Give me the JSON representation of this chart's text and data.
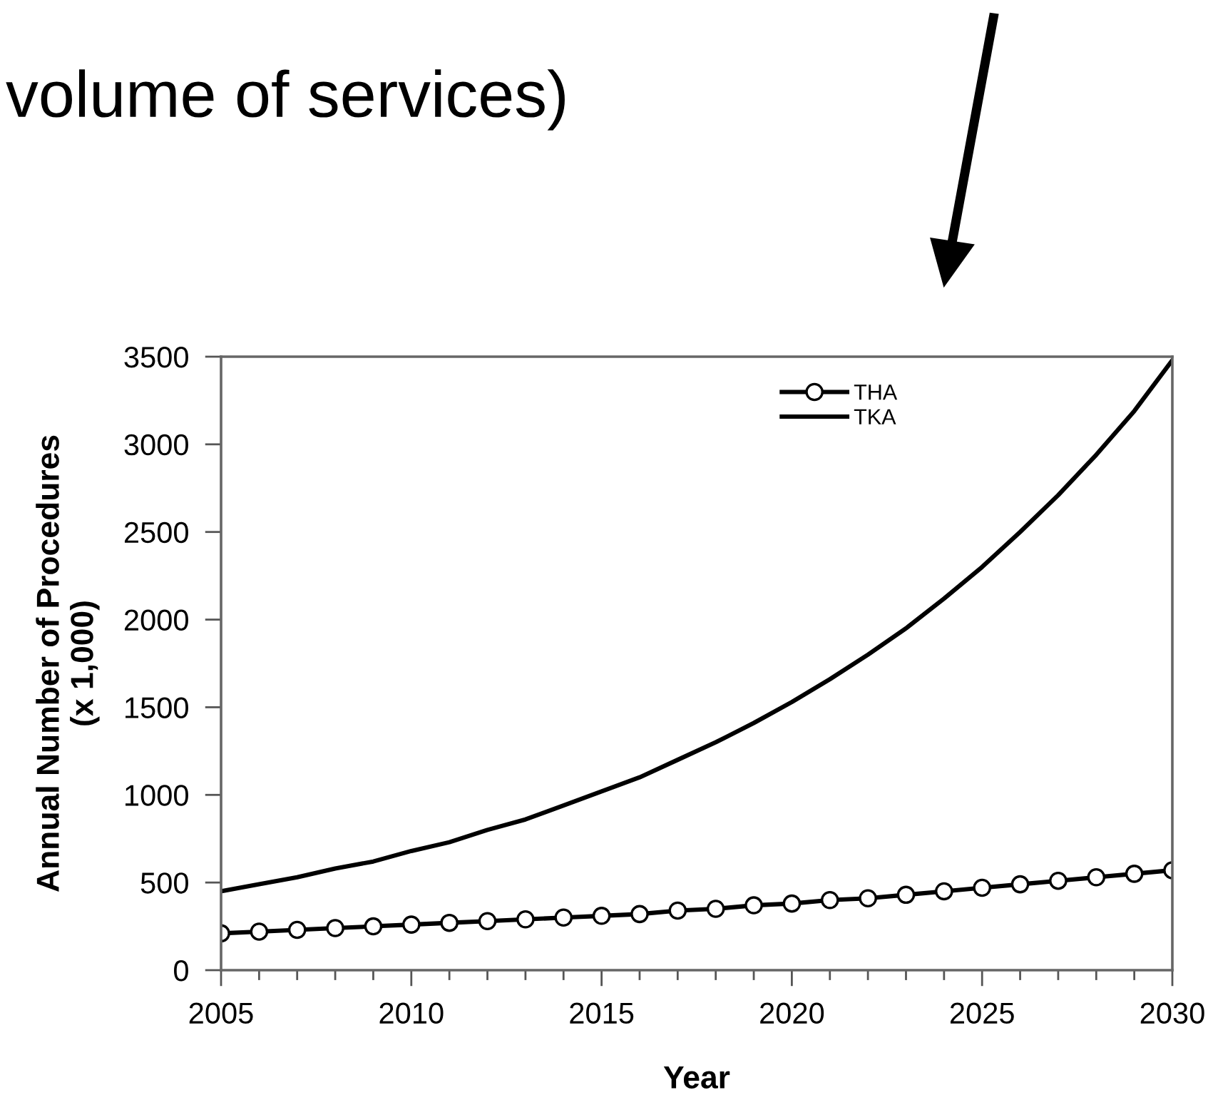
{
  "chart_data": {
    "type": "line",
    "xlabel": "Year",
    "ylabel": "Annual Number of Procedures\n(x 1,000)",
    "annotations": [
      "volume of services)"
    ],
    "x": [
      2005,
      2006,
      2007,
      2008,
      2009,
      2010,
      2011,
      2012,
      2013,
      2014,
      2015,
      2016,
      2017,
      2018,
      2019,
      2020,
      2021,
      2022,
      2023,
      2024,
      2025,
      2026,
      2027,
      2028,
      2029,
      2030
    ],
    "series": [
      {
        "name": "THA",
        "color": "#000000",
        "marker": "circle",
        "values": [
          210,
          220,
          230,
          240,
          250,
          260,
          270,
          280,
          290,
          300,
          310,
          320,
          340,
          350,
          370,
          380,
          400,
          410,
          430,
          450,
          470,
          490,
          510,
          530,
          550,
          570
        ]
      },
      {
        "name": "TKA",
        "color": "#000000",
        "marker": "none",
        "values": [
          450,
          490,
          530,
          580,
          620,
          680,
          730,
          800,
          860,
          940,
          1020,
          1100,
          1200,
          1300,
          1410,
          1530,
          1660,
          1800,
          1950,
          2120,
          2300,
          2500,
          2710,
          2940,
          3190,
          3480
        ]
      }
    ],
    "xlim": [
      2005,
      2030
    ],
    "xticks": [
      2005,
      {
        "value": 2006,
        "label": null
      },
      {
        "value": 2007,
        "label": null
      },
      {
        "value": 2008,
        "label": null
      },
      {
        "value": 2009,
        "label": null
      },
      2010,
      {
        "value": 2011,
        "label": null
      },
      {
        "value": 2012,
        "label": null
      },
      {
        "value": 2013,
        "label": null
      },
      {
        "value": 2014,
        "label": null
      },
      2015,
      {
        "value": 2016,
        "label": null
      },
      {
        "value": 2017,
        "label": null
      },
      {
        "value": 2018,
        "label": null
      },
      {
        "value": 2019,
        "label": null
      },
      2020,
      {
        "value": 2021,
        "label": null
      },
      {
        "value": 2022,
        "label": null
      },
      {
        "value": 2023,
        "label": null
      },
      {
        "value": 2024,
        "label": null
      },
      2025,
      {
        "value": 2026,
        "label": null
      },
      {
        "value": 2027,
        "label": null
      },
      {
        "value": 2028,
        "label": null
      },
      {
        "value": 2029,
        "label": null
      },
      2030
    ],
    "ylim": [
      0,
      3500
    ],
    "yticks": [
      0,
      500,
      1000,
      1500,
      2000,
      2500,
      3000,
      3500
    ],
    "grid": false,
    "legend": "top right",
    "line_style": "solid"
  }
}
